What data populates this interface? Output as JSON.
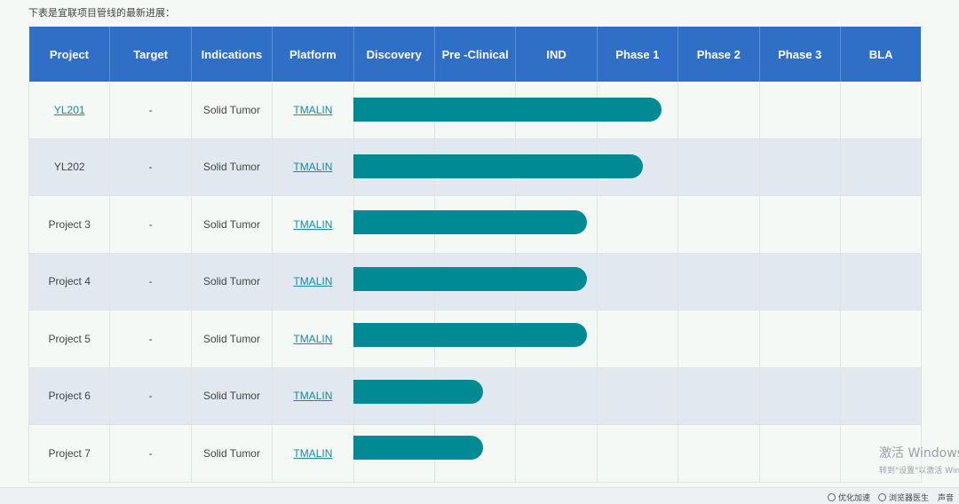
{
  "intro_text": "下表是宜联项目管线的最新进展：",
  "headers": [
    "Project",
    "Target",
    "Indications",
    "Platform",
    "Discovery",
    "Pre -Clinical",
    "IND",
    "Phase 1",
    "Phase 2",
    "Phase 3",
    "BLA"
  ],
  "rows": [
    {
      "project": "YL201",
      "project_link": true,
      "target": "-",
      "indication": "Solid Tumor",
      "platform": "TMALIN",
      "progress_phase_units": 3.8
    },
    {
      "project": "YL202",
      "project_link": false,
      "target": "-",
      "indication": "Solid Tumor",
      "platform": "TMALIN",
      "progress_phase_units": 3.57
    },
    {
      "project": "Project 3",
      "project_link": false,
      "target": "-",
      "indication": "Solid Tumor",
      "platform": "TMALIN",
      "progress_phase_units": 2.88
    },
    {
      "project": "Project 4",
      "project_link": false,
      "target": "-",
      "indication": "Solid Tumor",
      "platform": "TMALIN",
      "progress_phase_units": 2.88
    },
    {
      "project": "Project 5",
      "project_link": false,
      "target": "-",
      "indication": "Solid Tumor",
      "platform": "TMALIN",
      "progress_phase_units": 2.88
    },
    {
      "project": "Project 6",
      "project_link": false,
      "target": "-",
      "indication": "Solid Tumor",
      "platform": "TMALIN",
      "progress_phase_units": 1.6
    },
    {
      "project": "Project 7",
      "project_link": false,
      "target": "-",
      "indication": "Solid Tumor",
      "platform": "TMALIN",
      "progress_phase_units": 1.6
    }
  ],
  "colors": {
    "header_bg": "#2f6fc6",
    "bar": "#008b94",
    "row_alt": "#e1e8ef",
    "link": "#1a8aa0"
  },
  "status_bar": {
    "optimize": "优化加速",
    "browser_doctor": "浏览器医生",
    "sound": "声音"
  },
  "watermark": {
    "line1": "激活 Windows",
    "line2": "转到\"设置\"以激活 Windows"
  }
}
